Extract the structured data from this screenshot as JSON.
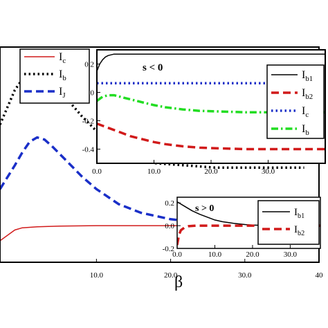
{
  "chart_data": [
    {
      "id": "main",
      "type": "line",
      "xlabel": "β",
      "ylabel": "",
      "xlim": [
        -3,
        40
      ],
      "ylim": [
        0,
        1
      ],
      "xticks": [
        "10.0",
        "20.0",
        "30.0",
        "40"
      ],
      "grid": false,
      "legend_position": "top-left",
      "series": [
        {
          "name": "I",
          "sub": "c",
          "color": "#d11a1a",
          "dash": "solid",
          "x": [
            -3,
            -1,
            0,
            2,
            5,
            10,
            20,
            30,
            38
          ],
          "y": [
            0.1,
            0.15,
            0.16,
            0.165,
            0.168,
            0.17,
            0.17,
            0.17,
            0.17
          ]
        },
        {
          "name": "I",
          "sub": "b",
          "color": "#000000",
          "dash": "dotted",
          "x": [
            -3,
            -1,
            0,
            1,
            2,
            3,
            4,
            6,
            8,
            10,
            12,
            15,
            18,
            22,
            26,
            30,
            34,
            38
          ],
          "y": [
            0.64,
            0.8,
            0.85,
            0.89,
            0.9,
            0.89,
            0.85,
            0.76,
            0.68,
            0.61,
            0.55,
            0.49,
            0.46,
            0.45,
            0.44,
            0.44,
            0.44,
            0.44
          ]
        },
        {
          "name": "I",
          "sub": "J",
          "color": "#1a2fc8",
          "dash": "dashed",
          "x": [
            -3,
            -1,
            0,
            1,
            2,
            3,
            4,
            6,
            8,
            10,
            13,
            16,
            20,
            24,
            28,
            32,
            38
          ],
          "y": [
            0.34,
            0.45,
            0.51,
            0.56,
            0.58,
            0.57,
            0.54,
            0.47,
            0.4,
            0.34,
            0.27,
            0.23,
            0.2,
            0.185,
            0.18,
            0.175,
            0.175
          ]
        }
      ]
    },
    {
      "id": "inset1",
      "type": "line",
      "annotation": "s < 0",
      "xlim": [
        0,
        40
      ],
      "ylim": [
        -0.5,
        0.3
      ],
      "xticks": [
        {
          "v": 0,
          "t": "0.0"
        },
        {
          "v": 10,
          "t": "10.0"
        },
        {
          "v": 20,
          "t": "20.0"
        },
        {
          "v": 30,
          "t": "30.0"
        }
      ],
      "yticks": [
        {
          "v": 0.2,
          "t": "0.2"
        },
        {
          "v": 0,
          "t": "0"
        },
        {
          "v": -0.2,
          "t": "-0.2"
        },
        {
          "v": -0.4,
          "t": "-0.4"
        }
      ],
      "legend_position": "right",
      "series": [
        {
          "name": "I",
          "sub": "b1",
          "color": "#000000",
          "dash": "solid",
          "x": [
            0,
            0.5,
            1,
            1.5,
            2,
            3,
            4,
            6,
            10,
            20,
            30,
            40
          ],
          "y": [
            0.15,
            0.2,
            0.23,
            0.25,
            0.26,
            0.27,
            0.27,
            0.27,
            0.27,
            0.27,
            0.27,
            0.27
          ]
        },
        {
          "name": "I",
          "sub": "b2",
          "color": "#d11a1a",
          "dash": "dashed",
          "x": [
            0,
            2,
            4,
            6,
            8,
            10,
            12,
            15,
            18,
            22,
            26,
            30,
            35,
            40
          ],
          "y": [
            -0.22,
            -0.25,
            -0.28,
            -0.31,
            -0.33,
            -0.35,
            -0.365,
            -0.38,
            -0.39,
            -0.395,
            -0.4,
            -0.4,
            -0.4,
            -0.4
          ]
        },
        {
          "name": "I",
          "sub": "c",
          "color": "#1a2fc8",
          "dash": "dotted",
          "x": [
            0,
            10,
            20,
            30,
            40
          ],
          "y": [
            0.065,
            0.065,
            0.065,
            0.065,
            0.065
          ]
        },
        {
          "name": "I",
          "sub": "b",
          "color": "#22dd22",
          "dash": "dashdot",
          "x": [
            0,
            1,
            2,
            3,
            4,
            6,
            8,
            10,
            12,
            15,
            18,
            22,
            26,
            30,
            35,
            40
          ],
          "y": [
            -0.06,
            -0.03,
            -0.02,
            -0.02,
            -0.03,
            -0.05,
            -0.07,
            -0.09,
            -0.105,
            -0.12,
            -0.13,
            -0.135,
            -0.14,
            -0.14,
            -0.14,
            -0.14
          ]
        }
      ]
    },
    {
      "id": "inset2",
      "type": "line",
      "annotation": "s > 0",
      "xlim": [
        0,
        38
      ],
      "ylim": [
        -0.2,
        0.25
      ],
      "xticks": [
        {
          "v": 0,
          "t": "0.0"
        },
        {
          "v": 10,
          "t": "10.0"
        },
        {
          "v": 20,
          "t": "20.0"
        },
        {
          "v": 30,
          "t": "30.0"
        }
      ],
      "yticks": [
        {
          "v": 0.2,
          "t": "0.2"
        },
        {
          "v": 0,
          "t": "0.0"
        },
        {
          "v": -0.2,
          "t": "-0.2"
        }
      ],
      "legend_position": "right",
      "series": [
        {
          "name": "I",
          "sub": "b1",
          "color": "#000000",
          "dash": "solid",
          "x": [
            0,
            2,
            4,
            6,
            8,
            10,
            12,
            15,
            18,
            20,
            25,
            30,
            38
          ],
          "y": [
            0.21,
            0.17,
            0.13,
            0.1,
            0.075,
            0.05,
            0.035,
            0.02,
            0.01,
            0.005,
            0,
            0,
            0
          ]
        },
        {
          "name": "I",
          "sub": "b2",
          "color": "#d11a1a",
          "dash": "dashed",
          "x": [
            0,
            0.5,
            1,
            2,
            3,
            5,
            10,
            20,
            30,
            38
          ],
          "y": [
            -0.17,
            -0.08,
            -0.04,
            -0.015,
            -0.005,
            0,
            0,
            0,
            0,
            0
          ]
        }
      ]
    }
  ]
}
